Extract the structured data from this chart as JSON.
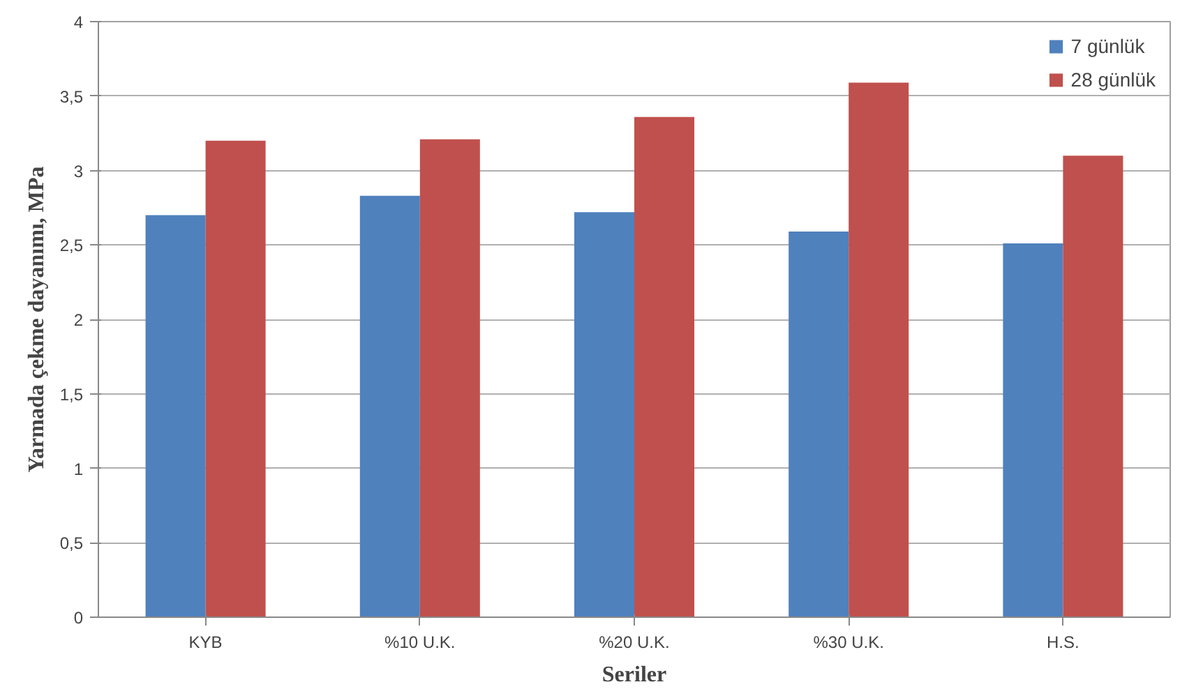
{
  "chart_data": {
    "type": "bar",
    "xlabel": "Seriler",
    "ylabel": "Yarmada çekme dayanımı, MPa",
    "categories": [
      "KYB",
      "%10 U.K.",
      "%20 U.K.",
      "%30 U.K.",
      "H.S."
    ],
    "series": [
      {
        "name": "7 günlük",
        "color": "#4f81bd",
        "values": [
          2.7,
          2.83,
          2.72,
          2.59,
          2.51
        ]
      },
      {
        "name": "28 günlük",
        "color": "#c0504d",
        "values": [
          3.2,
          3.21,
          3.36,
          3.59,
          3.1
        ]
      }
    ],
    "ylim": [
      0,
      4
    ],
    "yticks": [
      0,
      {
        "value": 0.5,
        "label": "0,5"
      },
      1,
      {
        "value": 1.5,
        "label": "1,5"
      },
      2,
      {
        "value": 2.5,
        "label": "2,5"
      },
      3,
      {
        "value": 3.5,
        "label": "3,5"
      },
      4
    ],
    "grid": "y",
    "legend": "top right"
  }
}
